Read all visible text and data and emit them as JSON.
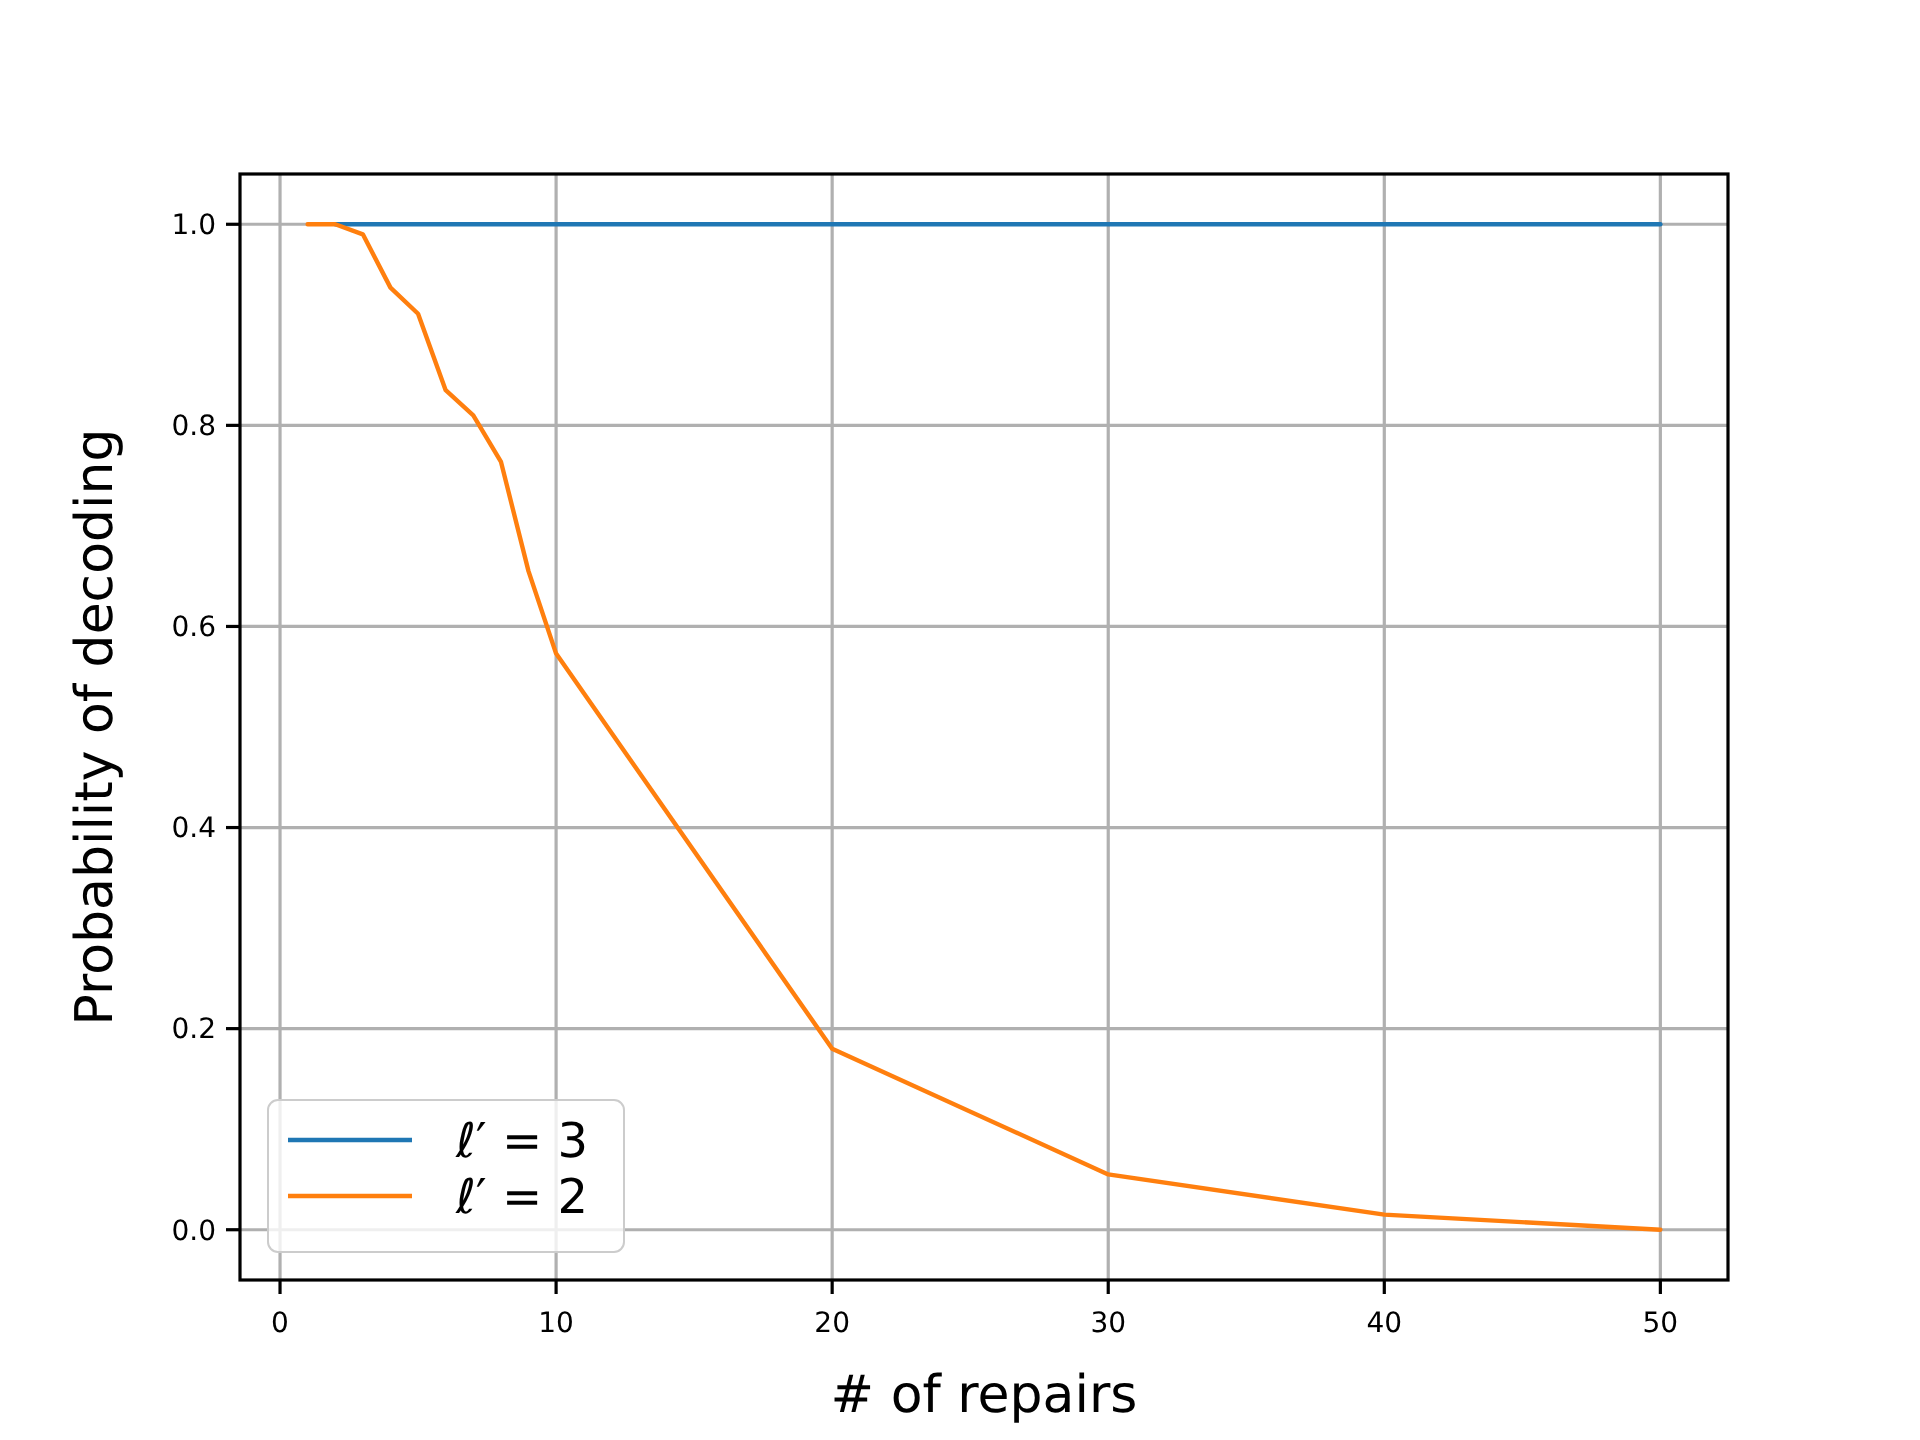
{
  "chart_data": {
    "type": "line",
    "xlabel": "# of repairs",
    "ylabel": "Probability of decoding",
    "x": [
      1,
      2,
      3,
      4,
      5,
      6,
      7,
      8,
      9,
      10,
      20,
      30,
      40,
      50
    ],
    "series": [
      {
        "name": "ℓ′ = 3",
        "color": "#1f77b4",
        "values": [
          null,
          1,
          1,
          1,
          1,
          1,
          1,
          1,
          1,
          1,
          1,
          1,
          1,
          1
        ]
      },
      {
        "name": "ℓ′ = 2",
        "color": "#ff7f0e",
        "values": [
          1,
          1,
          0.99,
          0.937,
          0.911,
          0.835,
          0.81,
          0.764,
          0.655,
          0.573,
          0.18,
          0.055,
          0.015,
          0
        ]
      }
    ],
    "xlim": [
      -1.45,
      52.45
    ],
    "ylim": [
      -0.05,
      1.05
    ],
    "xticks": [
      0,
      10,
      20,
      30,
      40,
      50
    ],
    "yticks": [
      {
        "value": 0,
        "label": "0.0"
      },
      {
        "value": 0.2,
        "label": "0.2"
      },
      {
        "value": 0.4,
        "label": "0.4"
      },
      {
        "value": 0.6,
        "label": "0.6"
      },
      {
        "value": 0.8,
        "label": "0.8"
      },
      {
        "value": 1,
        "label": "1.0"
      }
    ],
    "grid": true,
    "legend": "bottom left"
  }
}
